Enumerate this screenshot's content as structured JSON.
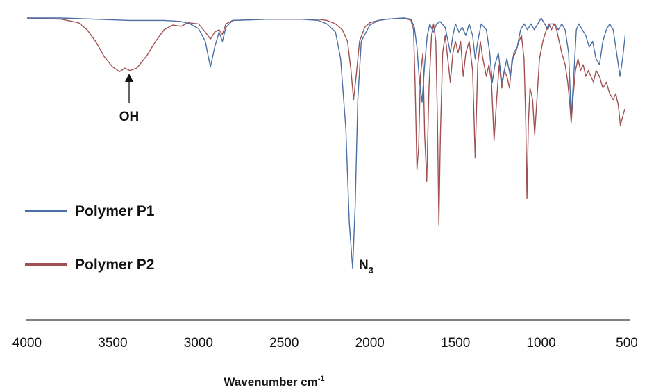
{
  "chart_data": {
    "type": "line",
    "title": "",
    "xlabel": "Wavenumber cm",
    "xlabel_superscript": "-1",
    "ylabel": "",
    "xlim": [
      4000,
      500
    ],
    "x_reversed": true,
    "x_ticks": [
      "4000",
      "3500",
      "3000",
      "2500",
      "2000",
      "1500",
      "1000",
      "500"
    ],
    "grid": false,
    "legend_position": "left",
    "series": [
      {
        "name": "Polymer P1",
        "color": "#4a6fa5",
        "points": [
          [
            4000,
            0.0
          ],
          [
            3800,
            0.0
          ],
          [
            3600,
            0.01
          ],
          [
            3400,
            0.02
          ],
          [
            3200,
            0.02
          ],
          [
            3100,
            0.03
          ],
          [
            3050,
            0.05
          ],
          [
            3000,
            0.09
          ],
          [
            2960,
            0.2
          ],
          [
            2930,
            0.42
          ],
          [
            2905,
            0.25
          ],
          [
            2880,
            0.12
          ],
          [
            2860,
            0.2
          ],
          [
            2840,
            0.08
          ],
          [
            2800,
            0.02
          ],
          [
            2600,
            0.01
          ],
          [
            2400,
            0.01
          ],
          [
            2300,
            0.02
          ],
          [
            2250,
            0.05
          ],
          [
            2200,
            0.12
          ],
          [
            2170,
            0.35
          ],
          [
            2140,
            0.95
          ],
          [
            2120,
            1.75
          ],
          [
            2100,
            2.15
          ],
          [
            2085,
            1.6
          ],
          [
            2070,
            0.7
          ],
          [
            2050,
            0.2
          ],
          [
            2000,
            0.06
          ],
          [
            1950,
            0.02
          ],
          [
            1900,
            0.01
          ],
          [
            1800,
            0.0
          ],
          [
            1760,
            0.01
          ],
          [
            1740,
            0.08
          ],
          [
            1725,
            0.25
          ],
          [
            1710,
            0.55
          ],
          [
            1695,
            0.72
          ],
          [
            1680,
            0.4
          ],
          [
            1665,
            0.15
          ],
          [
            1650,
            0.05
          ],
          [
            1630,
            0.12
          ],
          [
            1610,
            0.05
          ],
          [
            1590,
            0.03
          ],
          [
            1560,
            0.08
          ],
          [
            1530,
            0.3
          ],
          [
            1515,
            0.15
          ],
          [
            1500,
            0.05
          ],
          [
            1480,
            0.12
          ],
          [
            1460,
            0.08
          ],
          [
            1440,
            0.15
          ],
          [
            1420,
            0.05
          ],
          [
            1400,
            0.15
          ],
          [
            1385,
            0.35
          ],
          [
            1370,
            0.2
          ],
          [
            1350,
            0.05
          ],
          [
            1320,
            0.1
          ],
          [
            1300,
            0.3
          ],
          [
            1285,
            0.55
          ],
          [
            1270,
            0.4
          ],
          [
            1250,
            0.3
          ],
          [
            1230,
            0.55
          ],
          [
            1215,
            0.45
          ],
          [
            1200,
            0.35
          ],
          [
            1180,
            0.5
          ],
          [
            1160,
            0.3
          ],
          [
            1140,
            0.25
          ],
          [
            1120,
            0.1
          ],
          [
            1100,
            0.05
          ],
          [
            1080,
            0.1
          ],
          [
            1060,
            0.05
          ],
          [
            1040,
            0.1
          ],
          [
            1020,
            0.05
          ],
          [
            1000,
            0.0
          ],
          [
            980,
            0.05
          ],
          [
            960,
            0.1
          ],
          [
            950,
            0.05
          ],
          [
            920,
            0.05
          ],
          [
            900,
            0.1
          ],
          [
            880,
            0.05
          ],
          [
            860,
            0.1
          ],
          [
            840,
            0.3
          ],
          [
            825,
            0.85
          ],
          [
            810,
            0.5
          ],
          [
            795,
            0.1
          ],
          [
            780,
            0.05
          ],
          [
            760,
            0.1
          ],
          [
            740,
            0.15
          ],
          [
            720,
            0.25
          ],
          [
            700,
            0.2
          ],
          [
            680,
            0.35
          ],
          [
            660,
            0.4
          ],
          [
            640,
            0.2
          ],
          [
            620,
            0.1
          ],
          [
            600,
            0.05
          ],
          [
            580,
            0.1
          ],
          [
            560,
            0.3
          ],
          [
            540,
            0.5
          ],
          [
            525,
            0.35
          ],
          [
            510,
            0.15
          ]
        ]
      },
      {
        "name": "Polymer P2",
        "color": "#a05050",
        "points": [
          [
            4000,
            0.0
          ],
          [
            3800,
            0.01
          ],
          [
            3700,
            0.04
          ],
          [
            3650,
            0.1
          ],
          [
            3600,
            0.2
          ],
          [
            3550,
            0.33
          ],
          [
            3500,
            0.42
          ],
          [
            3460,
            0.46
          ],
          [
            3430,
            0.43
          ],
          [
            3400,
            0.45
          ],
          [
            3360,
            0.43
          ],
          [
            3300,
            0.32
          ],
          [
            3250,
            0.2
          ],
          [
            3200,
            0.1
          ],
          [
            3150,
            0.06
          ],
          [
            3100,
            0.07
          ],
          [
            3060,
            0.04
          ],
          [
            3000,
            0.05
          ],
          [
            2960,
            0.12
          ],
          [
            2930,
            0.18
          ],
          [
            2905,
            0.12
          ],
          [
            2880,
            0.1
          ],
          [
            2860,
            0.14
          ],
          [
            2840,
            0.05
          ],
          [
            2800,
            0.02
          ],
          [
            2600,
            0.01
          ],
          [
            2400,
            0.01
          ],
          [
            2300,
            0.01
          ],
          [
            2250,
            0.02
          ],
          [
            2200,
            0.05
          ],
          [
            2160,
            0.1
          ],
          [
            2130,
            0.2
          ],
          [
            2110,
            0.45
          ],
          [
            2095,
            0.7
          ],
          [
            2080,
            0.5
          ],
          [
            2060,
            0.2
          ],
          [
            2030,
            0.08
          ],
          [
            2000,
            0.04
          ],
          [
            1950,
            0.02
          ],
          [
            1900,
            0.01
          ],
          [
            1800,
            0.0
          ],
          [
            1760,
            0.02
          ],
          [
            1745,
            0.1
          ],
          [
            1735,
            0.6
          ],
          [
            1725,
            1.3
          ],
          [
            1715,
            1.1
          ],
          [
            1705,
            0.5
          ],
          [
            1690,
            0.3
          ],
          [
            1680,
            1.0
          ],
          [
            1668,
            1.4
          ],
          [
            1655,
            0.6
          ],
          [
            1640,
            0.15
          ],
          [
            1628,
            0.05
          ],
          [
            1615,
            0.2
          ],
          [
            1605,
            0.9
          ],
          [
            1597,
            1.78
          ],
          [
            1588,
            1.0
          ],
          [
            1575,
            0.3
          ],
          [
            1560,
            0.15
          ],
          [
            1545,
            0.35
          ],
          [
            1530,
            0.55
          ],
          [
            1515,
            0.3
          ],
          [
            1500,
            0.2
          ],
          [
            1485,
            0.3
          ],
          [
            1470,
            0.2
          ],
          [
            1455,
            0.5
          ],
          [
            1440,
            0.3
          ],
          [
            1420,
            0.2
          ],
          [
            1400,
            0.45
          ],
          [
            1385,
            1.2
          ],
          [
            1370,
            0.4
          ],
          [
            1355,
            0.2
          ],
          [
            1340,
            0.35
          ],
          [
            1320,
            0.5
          ],
          [
            1305,
            0.4
          ],
          [
            1290,
            0.55
          ],
          [
            1275,
            1.05
          ],
          [
            1260,
            0.7
          ],
          [
            1245,
            0.4
          ],
          [
            1230,
            0.6
          ],
          [
            1215,
            0.45
          ],
          [
            1200,
            0.5
          ],
          [
            1185,
            0.6
          ],
          [
            1170,
            0.35
          ],
          [
            1150,
            0.3
          ],
          [
            1130,
            0.2
          ],
          [
            1115,
            0.15
          ],
          [
            1100,
            0.35
          ],
          [
            1090,
            0.9
          ],
          [
            1083,
            1.55
          ],
          [
            1075,
            0.9
          ],
          [
            1065,
            0.6
          ],
          [
            1050,
            0.7
          ],
          [
            1038,
            1.0
          ],
          [
            1025,
            0.7
          ],
          [
            1010,
            0.35
          ],
          [
            990,
            0.2
          ],
          [
            970,
            0.1
          ],
          [
            955,
            0.05
          ],
          [
            940,
            0.1
          ],
          [
            925,
            0.05
          ],
          [
            910,
            0.1
          ],
          [
            895,
            0.2
          ],
          [
            880,
            0.3
          ],
          [
            860,
            0.4
          ],
          [
            845,
            0.55
          ],
          [
            835,
            0.7
          ],
          [
            825,
            0.9
          ],
          [
            815,
            0.7
          ],
          [
            800,
            0.45
          ],
          [
            785,
            0.35
          ],
          [
            770,
            0.45
          ],
          [
            755,
            0.4
          ],
          [
            740,
            0.5
          ],
          [
            725,
            0.45
          ],
          [
            710,
            0.5
          ],
          [
            695,
            0.55
          ],
          [
            680,
            0.45
          ],
          [
            660,
            0.5
          ],
          [
            640,
            0.6
          ],
          [
            620,
            0.55
          ],
          [
            600,
            0.65
          ],
          [
            580,
            0.7
          ],
          [
            565,
            0.65
          ],
          [
            550,
            0.75
          ],
          [
            538,
            0.92
          ],
          [
            525,
            0.85
          ],
          [
            512,
            0.78
          ]
        ]
      }
    ],
    "annotations": [
      {
        "label": "OH",
        "x": 3420,
        "arrow": true
      },
      {
        "label": "N",
        "subscript": "3",
        "x": 2100
      }
    ]
  }
}
